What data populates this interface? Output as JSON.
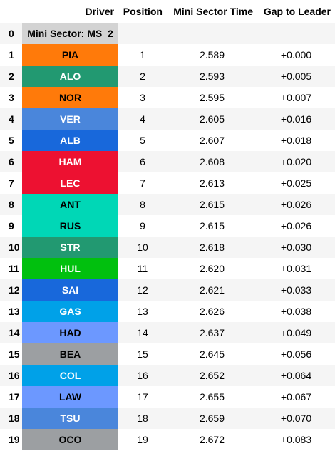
{
  "headers": {
    "index": "",
    "driver": "Driver",
    "position": "Position",
    "mini_sector_time": "Mini Sector Time",
    "gap": "Gap to Leader"
  },
  "sector_row": {
    "index": "0",
    "label": "Mini Sector: MS_2",
    "color": "#d3d3d3"
  },
  "rows": [
    {
      "index": "1",
      "driver": "PIA",
      "position": "1",
      "time": "2.589",
      "gap": "+0.000",
      "bg": "#ff7a0a",
      "fg": "#000000"
    },
    {
      "index": "2",
      "driver": "ALO",
      "position": "2",
      "time": "2.593",
      "gap": "+0.005",
      "bg": "#229971",
      "fg": "#ffffff"
    },
    {
      "index": "3",
      "driver": "NOR",
      "position": "3",
      "time": "2.595",
      "gap": "+0.007",
      "bg": "#ff7a0a",
      "fg": "#000000"
    },
    {
      "index": "4",
      "driver": "VER",
      "position": "4",
      "time": "2.605",
      "gap": "+0.016",
      "bg": "#4a86db",
      "fg": "#ffffff"
    },
    {
      "index": "5",
      "driver": "ALB",
      "position": "5",
      "time": "2.607",
      "gap": "+0.018",
      "bg": "#1868db",
      "fg": "#ffffff"
    },
    {
      "index": "6",
      "driver": "HAM",
      "position": "6",
      "time": "2.608",
      "gap": "+0.020",
      "bg": "#ed1131",
      "fg": "#ffffff"
    },
    {
      "index": "7",
      "driver": "LEC",
      "position": "7",
      "time": "2.613",
      "gap": "+0.025",
      "bg": "#ed1131",
      "fg": "#ffffff"
    },
    {
      "index": "8",
      "driver": "ANT",
      "position": "8",
      "time": "2.615",
      "gap": "+0.026",
      "bg": "#00d7b6",
      "fg": "#000000"
    },
    {
      "index": "9",
      "driver": "RUS",
      "position": "9",
      "time": "2.615",
      "gap": "+0.026",
      "bg": "#00d7b6",
      "fg": "#000000"
    },
    {
      "index": "10",
      "driver": "STR",
      "position": "10",
      "time": "2.618",
      "gap": "+0.030",
      "bg": "#229971",
      "fg": "#ffffff"
    },
    {
      "index": "11",
      "driver": "HUL",
      "position": "11",
      "time": "2.620",
      "gap": "+0.031",
      "bg": "#01c00e",
      "fg": "#ffffff"
    },
    {
      "index": "12",
      "driver": "SAI",
      "position": "12",
      "time": "2.621",
      "gap": "+0.033",
      "bg": "#1868db",
      "fg": "#ffffff"
    },
    {
      "index": "13",
      "driver": "GAS",
      "position": "13",
      "time": "2.626",
      "gap": "+0.038",
      "bg": "#00a1e8",
      "fg": "#ffffff"
    },
    {
      "index": "14",
      "driver": "HAD",
      "position": "14",
      "time": "2.637",
      "gap": "+0.049",
      "bg": "#6c98ff",
      "fg": "#000000"
    },
    {
      "index": "15",
      "driver": "BEA",
      "position": "15",
      "time": "2.645",
      "gap": "+0.056",
      "bg": "#9c9fa2",
      "fg": "#000000"
    },
    {
      "index": "16",
      "driver": "COL",
      "position": "16",
      "time": "2.652",
      "gap": "+0.064",
      "bg": "#00a1e8",
      "fg": "#ffffff"
    },
    {
      "index": "17",
      "driver": "LAW",
      "position": "17",
      "time": "2.655",
      "gap": "+0.067",
      "bg": "#6c98ff",
      "fg": "#000000"
    },
    {
      "index": "18",
      "driver": "TSU",
      "position": "18",
      "time": "2.659",
      "gap": "+0.070",
      "bg": "#4a86db",
      "fg": "#ffffff"
    },
    {
      "index": "19",
      "driver": "OCO",
      "position": "19",
      "time": "2.672",
      "gap": "+0.083",
      "bg": "#9c9fa2",
      "fg": "#000000"
    }
  ]
}
